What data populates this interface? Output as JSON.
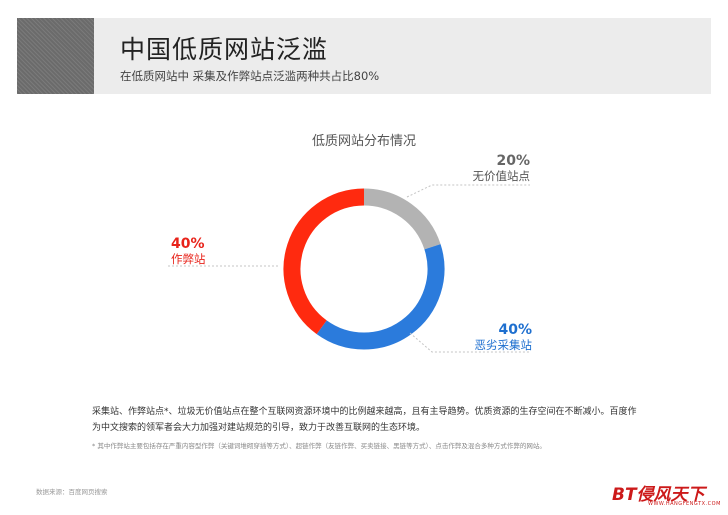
{
  "header": {
    "title": "中国低质网站泛滥",
    "subtitle": "在低质网站中 采集及作弊站点泛滥两种共占比80%"
  },
  "chart_data": {
    "type": "pie",
    "title": "低质网站分布情况",
    "slices": [
      {
        "label": "无价值站点",
        "value": 20,
        "pct_label": "20%",
        "color": "#b3b3b3"
      },
      {
        "label": "恶劣采集站",
        "value": 40,
        "pct_label": "40%",
        "color": "#2b7bdc"
      },
      {
        "label": "作弊站",
        "value": 40,
        "pct_label": "40%",
        "color": "#ff2a0f"
      }
    ]
  },
  "description": "采集站、作弊站点*、垃圾无价值站点在整个互联网资源环境中的比例越来越高，且有主导趋势。优质资源的生存空间在不断减小。百度作为中文搜索的领军者会大力加强对建站规范的引导，致力于改善互联网的生态环境。",
  "footnote": "* 其中作弊站主要包括存在严重内容型作弊（关键词堆砌穿插等方式）、超链作弊（友链作弊、买卖链接、黑链等方式）、点击作弊及混合多种方式作弊的网站。",
  "source": "数据来源：百度网页搜索",
  "logo": {
    "main": "BT侵风天下",
    "sub": "WWW.HANGFENGTX.COM"
  }
}
